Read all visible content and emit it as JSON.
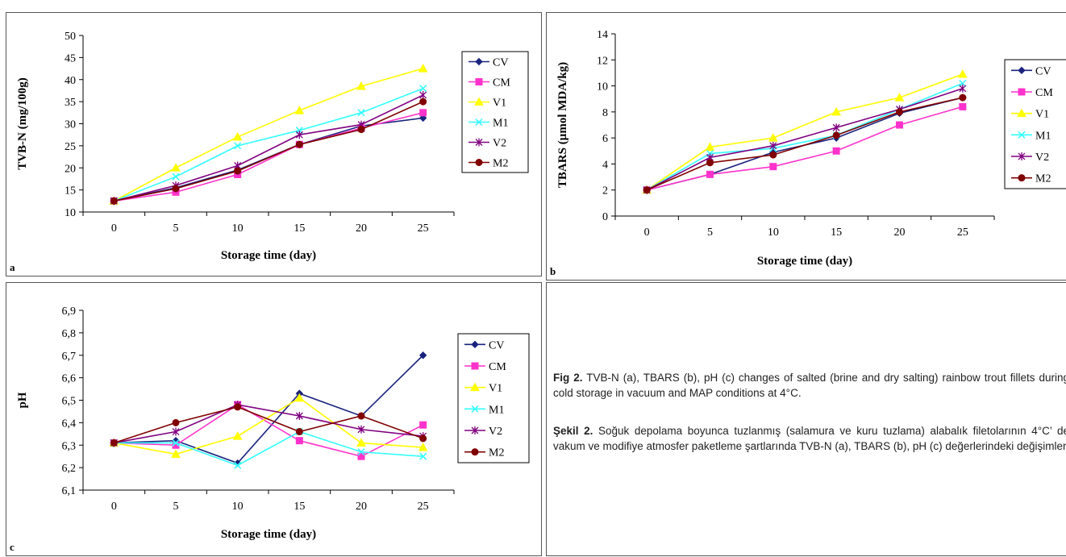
{
  "colors": {
    "CV": "#1a237e",
    "CM": "#ff33cc",
    "V1": "#ffff00",
    "M1": "#33ffff",
    "V2": "#800080",
    "M2": "#800000"
  },
  "series_markers": {
    "CV": "diamond",
    "CM": "square",
    "V1": "triangle",
    "M1": "x",
    "V2": "star",
    "M2": "circle"
  },
  "chart_data": [
    {
      "panel": "a",
      "type": "line",
      "ylabel": "TVB-N (mg/100g)",
      "xlabel": "Storage time (day)",
      "x": [
        0,
        5,
        10,
        15,
        20,
        25
      ],
      "xtick_labels": [
        "0",
        "5",
        "10",
        "15",
        "20",
        "25"
      ],
      "ylim": [
        10,
        50
      ],
      "yticks": [
        10,
        15,
        20,
        25,
        30,
        35,
        40,
        45,
        50
      ],
      "ytick_labels": [
        "10",
        "15",
        "20",
        "25",
        "30",
        "35",
        "40",
        "45",
        "50"
      ],
      "legend_position": "right",
      "series": [
        {
          "name": "CV",
          "values": [
            12.5,
            15.5,
            19.5,
            25.3,
            29.5,
            31.3
          ]
        },
        {
          "name": "CM",
          "values": [
            12.5,
            14.5,
            18.5,
            25.3,
            29.0,
            32.5
          ]
        },
        {
          "name": "V1",
          "values": [
            12.5,
            20.0,
            27.0,
            33.0,
            38.5,
            42.5
          ]
        },
        {
          "name": "M1",
          "values": [
            12.5,
            18.0,
            25.0,
            28.5,
            32.5,
            38.0
          ]
        },
        {
          "name": "V2",
          "values": [
            12.5,
            16.0,
            20.5,
            27.5,
            29.8,
            36.5
          ]
        },
        {
          "name": "M2",
          "values": [
            12.5,
            15.3,
            19.3,
            25.3,
            28.7,
            35.0
          ]
        }
      ]
    },
    {
      "panel": "b",
      "type": "line",
      "ylabel": "TBARS (µmol MDA/kg)",
      "xlabel": "Storage time (day)",
      "x": [
        0,
        5,
        10,
        15,
        20,
        25
      ],
      "xtick_labels": [
        "0",
        "5",
        "10",
        "15",
        "20",
        "25"
      ],
      "ylim": [
        0,
        14
      ],
      "yticks": [
        0,
        2,
        4,
        6,
        8,
        10,
        12,
        14
      ],
      "ytick_labels": [
        "0",
        "2",
        "4",
        "6",
        "8",
        "10",
        "12",
        "14"
      ],
      "legend_position": "right",
      "series": [
        {
          "name": "CV",
          "values": [
            2.0,
            3.2,
            4.9,
            6.0,
            7.9,
            9.1
          ]
        },
        {
          "name": "CM",
          "values": [
            2.0,
            3.2,
            3.8,
            5.0,
            7.0,
            8.4
          ]
        },
        {
          "name": "V1",
          "values": [
            2.0,
            5.3,
            6.0,
            8.0,
            9.1,
            10.9
          ]
        },
        {
          "name": "M1",
          "values": [
            2.0,
            4.8,
            5.2,
            6.2,
            8.2,
            10.2
          ]
        },
        {
          "name": "V2",
          "values": [
            2.0,
            4.5,
            5.4,
            6.8,
            8.2,
            9.8
          ]
        },
        {
          "name": "M2",
          "values": [
            2.0,
            4.1,
            4.7,
            6.2,
            8.0,
            9.1
          ]
        }
      ]
    },
    {
      "panel": "c",
      "type": "line",
      "ylabel": "pH",
      "xlabel": "Storage time (day)",
      "x": [
        0,
        5,
        10,
        15,
        20,
        25
      ],
      "xtick_labels": [
        "0",
        "5",
        "10",
        "15",
        "20",
        "25"
      ],
      "ylim": [
        6.1,
        6.9
      ],
      "yticks": [
        6.1,
        6.2,
        6.3,
        6.4,
        6.5,
        6.6,
        6.7,
        6.8,
        6.9
      ],
      "ytick_labels": [
        "6,1",
        "6,2",
        "6,3",
        "6,4",
        "6,5",
        "6,6",
        "6,7",
        "6,8",
        "6,9"
      ],
      "legend_position": "right",
      "series": [
        {
          "name": "CV",
          "values": [
            6.31,
            6.32,
            6.22,
            6.53,
            6.43,
            6.7
          ]
        },
        {
          "name": "CM",
          "values": [
            6.31,
            6.3,
            6.48,
            6.32,
            6.25,
            6.39
          ]
        },
        {
          "name": "V1",
          "values": [
            6.31,
            6.26,
            6.34,
            6.51,
            6.31,
            6.29
          ]
        },
        {
          "name": "M1",
          "values": [
            6.31,
            6.31,
            6.21,
            6.36,
            6.27,
            6.25
          ]
        },
        {
          "name": "V2",
          "values": [
            6.31,
            6.36,
            6.48,
            6.43,
            6.37,
            6.34
          ]
        },
        {
          "name": "M2",
          "values": [
            6.31,
            6.4,
            6.47,
            6.36,
            6.43,
            6.33
          ]
        }
      ]
    }
  ],
  "panel_letters": {
    "a": "a",
    "b": "b",
    "c": "c"
  },
  "caption_en": {
    "label": "Fig 2.",
    "text": " TVB-N (a), TBARS (b), pH (c) changes of salted (brine and dry salting) rainbow trout fillets during cold storage in vacuum and MAP conditions at 4°C."
  },
  "caption_tr": {
    "label": "Şekil 2.",
    "text": " Soğuk depolama boyunca tuzlanmış (salamura ve kuru tuzlama) alabalık filetolarının 4°C’ de vakum ve modifiye atmosfer paketleme şartlarında TVB-N (a), TBARS (b), pH (c) değerlerindeki değişimler"
  }
}
